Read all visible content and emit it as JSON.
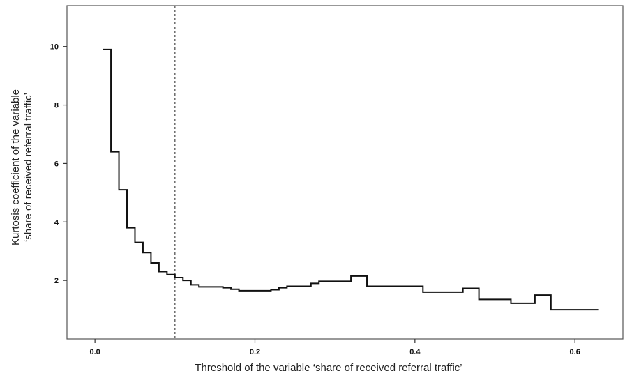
{
  "chart_data": {
    "type": "line",
    "step": true,
    "xlabel": "Threshold of the variable ‘share of received referral traffic’",
    "ylabel_lines": [
      "Kurtosis coefficient of the variable",
      "‘share of received referral traffic’"
    ],
    "xlim": [
      -0.035,
      0.66
    ],
    "ylim": [
      0,
      11.4
    ],
    "xticks": [
      0.0,
      0.2,
      0.4,
      0.6
    ],
    "xtick_labels": [
      "0.0",
      "0.2",
      "0.4",
      "0.6"
    ],
    "yticks": [
      2,
      4,
      6,
      8,
      10
    ],
    "ytick_labels": [
      "2",
      "4",
      "6",
      "8",
      "10"
    ],
    "reference_line_x": 0.1,
    "grid": false,
    "series": [
      {
        "x": [
          0.01,
          0.02,
          0.03,
          0.04,
          0.05,
          0.06,
          0.07,
          0.08,
          0.09,
          0.1,
          0.11,
          0.12,
          0.13,
          0.16,
          0.17,
          0.18,
          0.21,
          0.22,
          0.23,
          0.24,
          0.27,
          0.28,
          0.32,
          0.34,
          0.41,
          0.46,
          0.48,
          0.52,
          0.55,
          0.57,
          0.63
        ],
        "y": [
          9.9,
          6.4,
          5.1,
          3.8,
          3.3,
          2.95,
          2.6,
          2.3,
          2.2,
          2.1,
          2.0,
          1.85,
          1.78,
          1.75,
          1.7,
          1.65,
          1.65,
          1.68,
          1.75,
          1.8,
          1.9,
          1.97,
          2.15,
          1.8,
          1.6,
          1.73,
          1.35,
          1.22,
          1.5,
          1.0,
          1.0
        ]
      }
    ]
  }
}
